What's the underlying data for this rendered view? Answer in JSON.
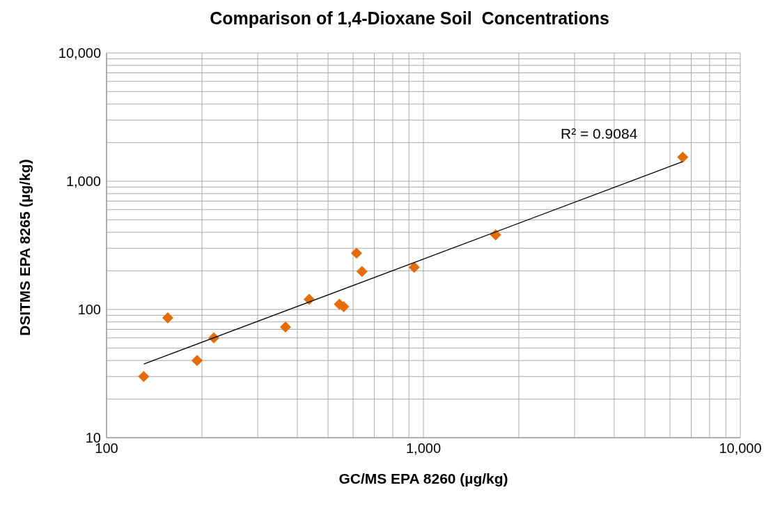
{
  "chart_data": {
    "type": "scatter",
    "title": "Comparison of 1,4-Dioxane Soil  Concentrations",
    "xlabel": "GC/MS EPA 8260 (µg/kg)",
    "ylabel": "DSITMS EPA 8265 (µg/kg)",
    "log": "xy",
    "grid": true,
    "legend": false,
    "marker": "diamond",
    "xlim": [
      100,
      10000
    ],
    "xticks": [
      {
        "value": 100,
        "label": "100"
      },
      {
        "value": 200,
        "label": null
      },
      {
        "value": 300,
        "label": null
      },
      {
        "value": 400,
        "label": null
      },
      {
        "value": 500,
        "label": null
      },
      {
        "value": 600,
        "label": null
      },
      {
        "value": 700,
        "label": null
      },
      {
        "value": 800,
        "label": null
      },
      {
        "value": 900,
        "label": null
      },
      {
        "value": 1000,
        "label": "1,000"
      },
      {
        "value": 2000,
        "label": null
      },
      {
        "value": 3000,
        "label": null
      },
      {
        "value": 4000,
        "label": null
      },
      {
        "value": 5000,
        "label": null
      },
      {
        "value": 6000,
        "label": null
      },
      {
        "value": 7000,
        "label": null
      },
      {
        "value": 8000,
        "label": null
      },
      {
        "value": 9000,
        "label": null
      },
      {
        "value": 10000,
        "label": "10,000"
      }
    ],
    "ylim": [
      10,
      10000
    ],
    "yticks": [
      10,
      {
        "value": 20,
        "label": null
      },
      {
        "value": 30,
        "label": null
      },
      {
        "value": 40,
        "label": null
      },
      {
        "value": 50,
        "label": null
      },
      {
        "value": 60,
        "label": null
      },
      {
        "value": 70,
        "label": null
      },
      {
        "value": 80,
        "label": null
      },
      {
        "value": 90,
        "label": null
      },
      100,
      {
        "value": 200,
        "label": null
      },
      {
        "value": 300,
        "label": null
      },
      {
        "value": 400,
        "label": null
      },
      {
        "value": 500,
        "label": null
      },
      {
        "value": 600,
        "label": null
      },
      {
        "value": 700,
        "label": null
      },
      {
        "value": 800,
        "label": null
      },
      {
        "value": 900,
        "label": null
      },
      {
        "value": 1000,
        "label": "1,000"
      },
      {
        "value": 2000,
        "label": null
      },
      {
        "value": 3000,
        "label": null
      },
      {
        "value": 4000,
        "label": null
      },
      {
        "value": 5000,
        "label": null
      },
      {
        "value": 6000,
        "label": null
      },
      {
        "value": 7000,
        "label": null
      },
      {
        "value": 8000,
        "label": null
      },
      {
        "value": 9000,
        "label": null
      },
      {
        "value": 10000,
        "label": "10,000"
      }
    ],
    "annotations": [
      "R² = 0.9084"
    ],
    "series": [
      {
        "type": "scatter",
        "color": "#e46c0a",
        "x": [
          131,
          156,
          193,
          218,
          367,
          436,
          543,
          560,
          615,
          640,
          935,
          1690,
          6580
        ],
        "values": [
          30,
          86,
          40,
          60,
          73,
          120,
          110,
          105,
          275,
          198,
          213,
          382,
          1540
        ]
      },
      {
        "type": "line",
        "color": "#000000",
        "line_style": "solid",
        "marker": "none",
        "x": [
          131,
          6580
        ],
        "values": [
          37.5,
          1420
        ]
      }
    ]
  }
}
